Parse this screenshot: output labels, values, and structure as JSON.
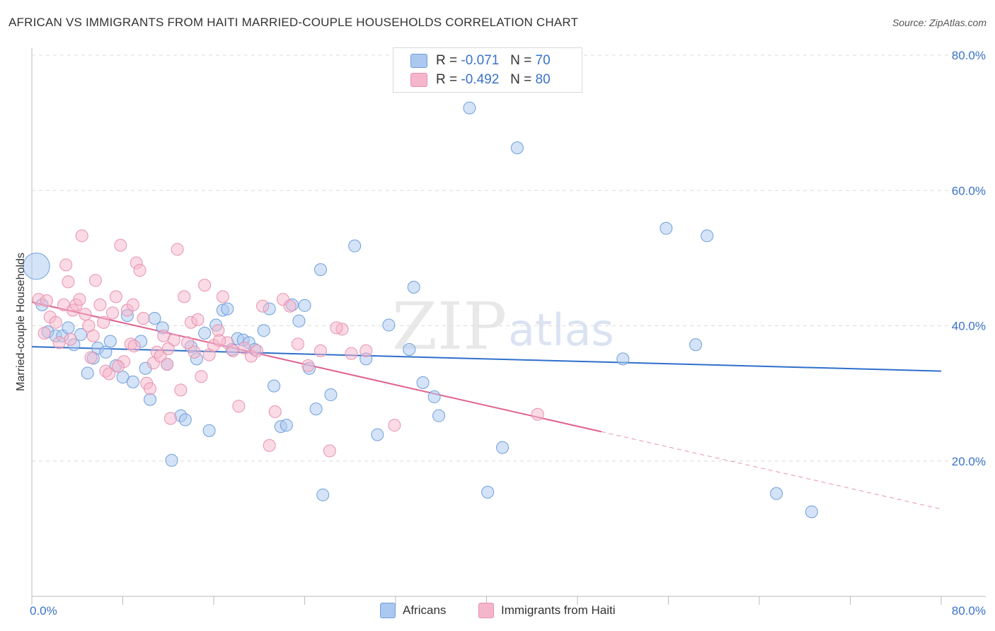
{
  "title": "AFRICAN VS IMMIGRANTS FROM HAITI MARRIED-COUPLE HOUSEHOLDS CORRELATION CHART",
  "source": "Source: ZipAtlas.com",
  "watermark": {
    "zip": "ZIP",
    "atlas": "atlas"
  },
  "legend_top": {
    "rows": [
      {
        "r_label": "R =",
        "r_value": "-0.071",
        "n_label": "N =",
        "n_value": "70",
        "color": "#aac8f0"
      },
      {
        "r_label": "R =",
        "r_value": "-0.492",
        "n_label": "N =",
        "n_value": "80",
        "color": "#f5b6cb"
      }
    ]
  },
  "legend_bottom": [
    {
      "label": "Africans",
      "color": "#aac8f0"
    },
    {
      "label": "Immigrants from Haiti",
      "color": "#f5b6cb"
    }
  ],
  "chart_data": {
    "type": "scatter",
    "xlabel": "",
    "ylabel": "Married-couple Households",
    "xlim": [
      0,
      80
    ],
    "ylim": [
      0,
      80
    ],
    "x_tick_labels": [
      "0.0%",
      "80.0%"
    ],
    "y_ticks": [
      20,
      40,
      60,
      80
    ],
    "y_tick_labels": [
      "20.0%",
      "40.0%",
      "60.0%",
      "80.0%"
    ],
    "grid": true,
    "legend_position": "top-center",
    "series": [
      {
        "name": "Africans",
        "color": "#aac8f0",
        "stroke": "#6f9fdc",
        "trend_color": "#2f6fcb",
        "trend": {
          "x0": 0,
          "y0": 36.9,
          "x1": 80,
          "y1": 33.3,
          "dash_from": null
        },
        "points": [
          [
            0.4,
            48.8,
            2.2
          ],
          [
            0.9,
            43.1,
            1
          ],
          [
            1.4,
            39.1,
            1
          ],
          [
            2.1,
            38.5,
            1
          ],
          [
            2.7,
            38.5,
            1
          ],
          [
            3.2,
            39.7,
            1
          ],
          [
            3.7,
            37.2,
            1
          ],
          [
            4.3,
            38.7,
            1
          ],
          [
            4.9,
            33.0,
            1
          ],
          [
            5.4,
            35.2,
            1
          ],
          [
            5.8,
            36.7,
            1
          ],
          [
            6.5,
            36.1,
            1
          ],
          [
            6.9,
            37.7,
            1
          ],
          [
            7.4,
            34.1,
            1
          ],
          [
            8.0,
            32.4,
            1
          ],
          [
            8.4,
            41.5,
            1
          ],
          [
            8.9,
            31.7,
            1
          ],
          [
            9.6,
            37.7,
            1
          ],
          [
            10.0,
            33.7,
            1
          ],
          [
            10.4,
            29.1,
            1
          ],
          [
            10.8,
            41.1,
            1
          ],
          [
            11.5,
            39.7,
            1
          ],
          [
            11.9,
            34.3,
            1
          ],
          [
            12.3,
            20.1,
            1
          ],
          [
            13.1,
            26.7,
            1
          ],
          [
            13.5,
            26.1,
            1
          ],
          [
            14.0,
            36.9,
            1
          ],
          [
            14.5,
            35.1,
            1
          ],
          [
            15.2,
            38.9,
            1
          ],
          [
            15.6,
            24.5,
            1
          ],
          [
            16.2,
            40.1,
            1
          ],
          [
            16.8,
            42.3,
            1
          ],
          [
            17.2,
            42.5,
            1
          ],
          [
            17.6,
            36.5,
            1
          ],
          [
            18.1,
            38.1,
            1
          ],
          [
            18.6,
            37.9,
            1
          ],
          [
            19.1,
            37.5,
            1
          ],
          [
            19.6,
            36.5,
            1
          ],
          [
            20.4,
            39.3,
            1
          ],
          [
            20.9,
            42.5,
            1
          ],
          [
            21.3,
            31.1,
            1
          ],
          [
            21.9,
            25.1,
            1
          ],
          [
            22.4,
            25.3,
            1
          ],
          [
            22.9,
            43.1,
            1
          ],
          [
            23.5,
            40.7,
            1
          ],
          [
            24.4,
            33.7,
            1
          ],
          [
            25.0,
            27.7,
            1
          ],
          [
            25.4,
            48.3,
            1
          ],
          [
            25.6,
            15.0,
            1
          ],
          [
            26.3,
            29.8,
            1
          ],
          [
            28.4,
            51.8,
            1
          ],
          [
            29.4,
            35.1,
            1
          ],
          [
            30.4,
            23.9,
            1
          ],
          [
            31.4,
            40.1,
            1
          ],
          [
            33.2,
            36.5,
            1
          ],
          [
            33.6,
            45.7,
            1
          ],
          [
            34.4,
            31.6,
            1
          ],
          [
            35.4,
            29.5,
            1
          ],
          [
            35.8,
            26.7,
            1
          ],
          [
            38.5,
            72.2,
            1
          ],
          [
            40.1,
            15.4,
            1
          ],
          [
            41.4,
            22.0,
            1
          ],
          [
            42.7,
            66.3,
            1
          ],
          [
            52.0,
            35.1,
            1
          ],
          [
            55.8,
            54.4,
            1
          ],
          [
            58.4,
            37.2,
            1
          ],
          [
            59.4,
            53.3,
            1
          ],
          [
            65.5,
            15.2,
            1
          ],
          [
            68.6,
            12.5,
            1
          ],
          [
            24.0,
            43.0,
            1
          ]
        ]
      },
      {
        "name": "Immigrants from Haiti",
        "color": "#f5b6cb",
        "stroke": "#e892ae",
        "trend_color": "#e0628f",
        "trend": {
          "x0": 0,
          "y0": 43.5,
          "x1": 80,
          "y1": 12.9,
          "dash_from": 50.1
        },
        "points": [
          [
            0.6,
            43.9,
            1
          ],
          [
            1.1,
            38.9,
            1
          ],
          [
            1.3,
            43.7,
            1
          ],
          [
            1.6,
            41.3,
            1
          ],
          [
            2.1,
            40.5,
            1
          ],
          [
            2.4,
            37.5,
            1
          ],
          [
            2.8,
            43.1,
            1
          ],
          [
            3.0,
            49.0,
            1
          ],
          [
            3.2,
            46.5,
            1
          ],
          [
            3.6,
            42.3,
            1
          ],
          [
            3.9,
            43.1,
            1
          ],
          [
            4.2,
            43.9,
            1
          ],
          [
            4.4,
            53.3,
            1
          ],
          [
            4.7,
            41.7,
            1
          ],
          [
            5.2,
            35.3,
            1
          ],
          [
            5.4,
            38.5,
            1
          ],
          [
            5.6,
            46.7,
            1
          ],
          [
            6.0,
            43.1,
            1
          ],
          [
            6.3,
            40.5,
            1
          ],
          [
            6.5,
            33.3,
            1
          ],
          [
            6.8,
            32.9,
            1
          ],
          [
            7.1,
            41.9,
            1
          ],
          [
            7.4,
            44.3,
            1
          ],
          [
            7.8,
            51.9,
            1
          ],
          [
            8.1,
            34.7,
            1
          ],
          [
            8.4,
            42.3,
            1
          ],
          [
            8.7,
            37.3,
            1
          ],
          [
            8.9,
            43.1,
            1
          ],
          [
            9.2,
            49.3,
            1
          ],
          [
            9.5,
            48.2,
            1
          ],
          [
            9.8,
            41.1,
            1
          ],
          [
            10.1,
            31.5,
            1
          ],
          [
            10.4,
            30.7,
            1
          ],
          [
            10.7,
            34.5,
            1
          ],
          [
            11.0,
            36.1,
            1
          ],
          [
            11.3,
            35.5,
            1
          ],
          [
            11.6,
            38.5,
            1
          ],
          [
            11.9,
            34.3,
            1
          ],
          [
            12.2,
            26.3,
            1
          ],
          [
            12.5,
            37.9,
            1
          ],
          [
            12.8,
            51.3,
            1
          ],
          [
            13.1,
            30.5,
            1
          ],
          [
            13.4,
            44.3,
            1
          ],
          [
            13.7,
            37.5,
            1
          ],
          [
            14.0,
            40.5,
            1
          ],
          [
            14.3,
            36.1,
            1
          ],
          [
            14.6,
            40.9,
            1
          ],
          [
            14.9,
            32.5,
            1
          ],
          [
            15.2,
            46.0,
            1
          ],
          [
            15.6,
            35.7,
            1
          ],
          [
            16.0,
            37.1,
            1
          ],
          [
            16.4,
            39.3,
            1
          ],
          [
            16.8,
            44.3,
            1
          ],
          [
            17.2,
            37.5,
            1
          ],
          [
            17.7,
            36.3,
            1
          ],
          [
            18.2,
            28.1,
            1
          ],
          [
            18.7,
            36.7,
            1
          ],
          [
            19.3,
            35.5,
            1
          ],
          [
            19.8,
            36.3,
            1
          ],
          [
            20.3,
            42.9,
            1
          ],
          [
            20.9,
            22.3,
            1
          ],
          [
            21.4,
            27.3,
            1
          ],
          [
            22.1,
            43.9,
            1
          ],
          [
            22.7,
            42.9,
            1
          ],
          [
            23.4,
            37.3,
            1
          ],
          [
            24.3,
            34.1,
            1
          ],
          [
            25.4,
            36.3,
            1
          ],
          [
            26.2,
            21.5,
            1
          ],
          [
            27.3,
            39.5,
            1
          ],
          [
            28.1,
            35.9,
            1
          ],
          [
            29.4,
            36.3,
            1
          ],
          [
            31.9,
            25.3,
            1
          ],
          [
            44.5,
            26.9,
            1
          ],
          [
            26.8,
            39.7,
            1
          ],
          [
            9.0,
            37.0,
            1
          ],
          [
            5.0,
            40.0,
            1
          ],
          [
            7.6,
            34.0,
            1
          ],
          [
            12.0,
            36.6,
            1
          ],
          [
            3.4,
            38.0,
            1
          ],
          [
            16.5,
            37.8,
            1
          ]
        ]
      }
    ]
  }
}
